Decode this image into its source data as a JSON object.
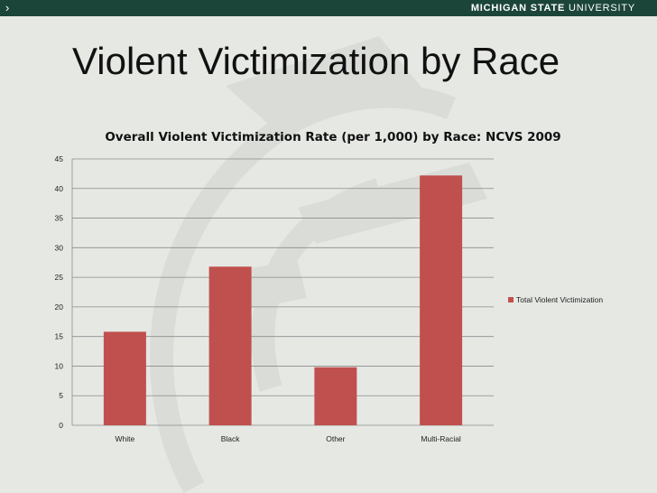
{
  "header": {
    "nav_arrow": "›",
    "university_bold": "MICHIGAN STATE ",
    "university_light": "UNIVERSITY"
  },
  "slide_title": "Violent Victimization by Race",
  "colors": {
    "bar": "#c0504d",
    "header": "#1c453a",
    "background": "#e6e8e4"
  },
  "chart_data": {
    "type": "bar",
    "title": "Overall Violent Victimization Rate (per 1,000) by Race: NCVS 2009",
    "categories": [
      "White",
      "Black",
      "Other",
      "Multi-Racial"
    ],
    "series": [
      {
        "name": "Total Violent Victimization",
        "values": [
          15.8,
          26.8,
          9.8,
          42.2
        ]
      }
    ],
    "ylim": [
      0,
      45
    ],
    "yticks": [
      0,
      5,
      10,
      15,
      20,
      25,
      30,
      35,
      40,
      45
    ],
    "grid": true,
    "legend": "right"
  }
}
